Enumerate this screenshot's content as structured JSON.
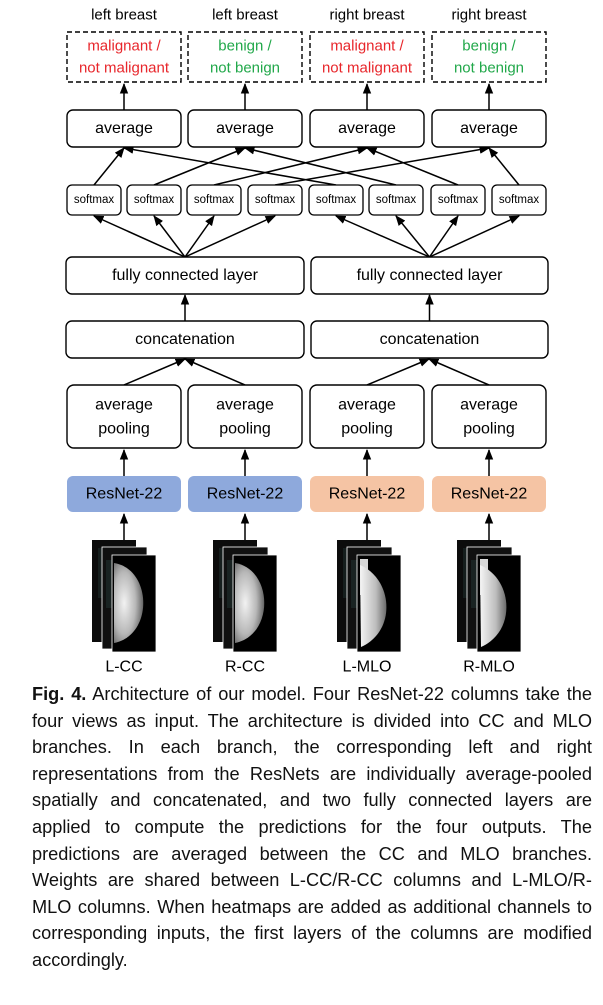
{
  "figure": {
    "outputs": [
      {
        "side": "left breast",
        "line1": "malignant /",
        "line2": "not malignant",
        "color": "#e8262b"
      },
      {
        "side": "left breast",
        "line1": "benign /",
        "line2": "not benign",
        "color": "#21a84a"
      },
      {
        "side": "right breast",
        "line1": "malignant /",
        "line2": "not malignant",
        "color": "#e8262b"
      },
      {
        "side": "right breast",
        "line1": "benign /",
        "line2": "not benign",
        "color": "#21a84a"
      }
    ],
    "average_label": "average",
    "softmax_label": "softmax",
    "fc_label": "fully connected layer",
    "concat_label": "concatenation",
    "pooling_line1": "average",
    "pooling_line2": "pooling",
    "resnet_label": "ResNet-22",
    "resnet_colors": [
      "#8ea9dc",
      "#8ea9dc",
      "#f5c4a4",
      "#f5c4a4"
    ],
    "views": [
      "L-CC",
      "R-CC",
      "L-MLO",
      "R-MLO"
    ]
  },
  "caption": {
    "label": "Fig. 4.",
    "text": "Architecture of our model. Four ResNet-22 columns take the four views as input. The architecture is divided into CC and MLO branches. In each branch, the corresponding left and right representations from the ResNets are individually average-pooled spatially and concatenated, and two fully connected layers are applied to compute the predictions for the four outputs. The predictions are averaged between the CC and MLO branches. Weights are shared between L-CC/R-CC columns and L-MLO/R-MLO columns. When heatmaps are added as additional channels to corresponding inputs, the first layers of the columns are modified accordingly."
  }
}
